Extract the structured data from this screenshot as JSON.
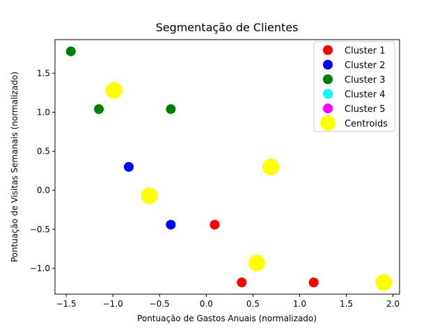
{
  "chart_data": {
    "type": "scatter",
    "title": "Segmentação de Clientes",
    "xlabel": "Pontuação de Gastos Anuais (normalizado)",
    "ylabel": "Pontuação de Visitas Semanais (normalizado)",
    "xlim": [
      -1.62,
      2.07
    ],
    "ylim": [
      -1.33,
      1.93
    ],
    "xticks": [
      -1.5,
      -1.0,
      -0.5,
      0.0,
      0.5,
      1.0,
      1.5,
      2.0
    ],
    "xtick_labels": [
      "−1.5",
      "−1.0",
      "−0.5",
      "0.0",
      "0.5",
      "1.0",
      "1.5",
      "2.0"
    ],
    "yticks": [
      -1.0,
      -0.5,
      0.0,
      0.5,
      1.0,
      1.5
    ],
    "ytick_labels": [
      "−1.0",
      "−0.5",
      "0.0",
      "0.5",
      "1.0",
      "1.5"
    ],
    "grid": false,
    "legend_position": "top-right",
    "series": [
      {
        "name": "Cluster 1",
        "color": "#ff0000",
        "points": [
          [
            0.09,
            -0.44
          ],
          [
            0.38,
            -1.18
          ],
          [
            1.15,
            -1.18
          ]
        ]
      },
      {
        "name": "Cluster 2",
        "color": "#0000ff",
        "points": [
          [
            -0.83,
            0.3
          ],
          [
            -0.38,
            -0.44
          ]
        ]
      },
      {
        "name": "Cluster 3",
        "color": "#008000",
        "points": [
          [
            -1.45,
            1.78
          ],
          [
            -1.15,
            1.04
          ],
          [
            -0.38,
            1.04
          ]
        ]
      },
      {
        "name": "Cluster 4",
        "color": "#00ffff",
        "points": []
      },
      {
        "name": "Cluster 5",
        "color": "#ff00ff",
        "points": []
      },
      {
        "name": "Centroids",
        "color": "#ffff00",
        "marker": "large",
        "points": [
          [
            -0.99,
            1.28
          ],
          [
            -0.61,
            -0.07
          ],
          [
            0.69,
            0.3
          ],
          [
            0.54,
            -0.93
          ],
          [
            1.9,
            -1.18
          ]
        ]
      }
    ]
  }
}
